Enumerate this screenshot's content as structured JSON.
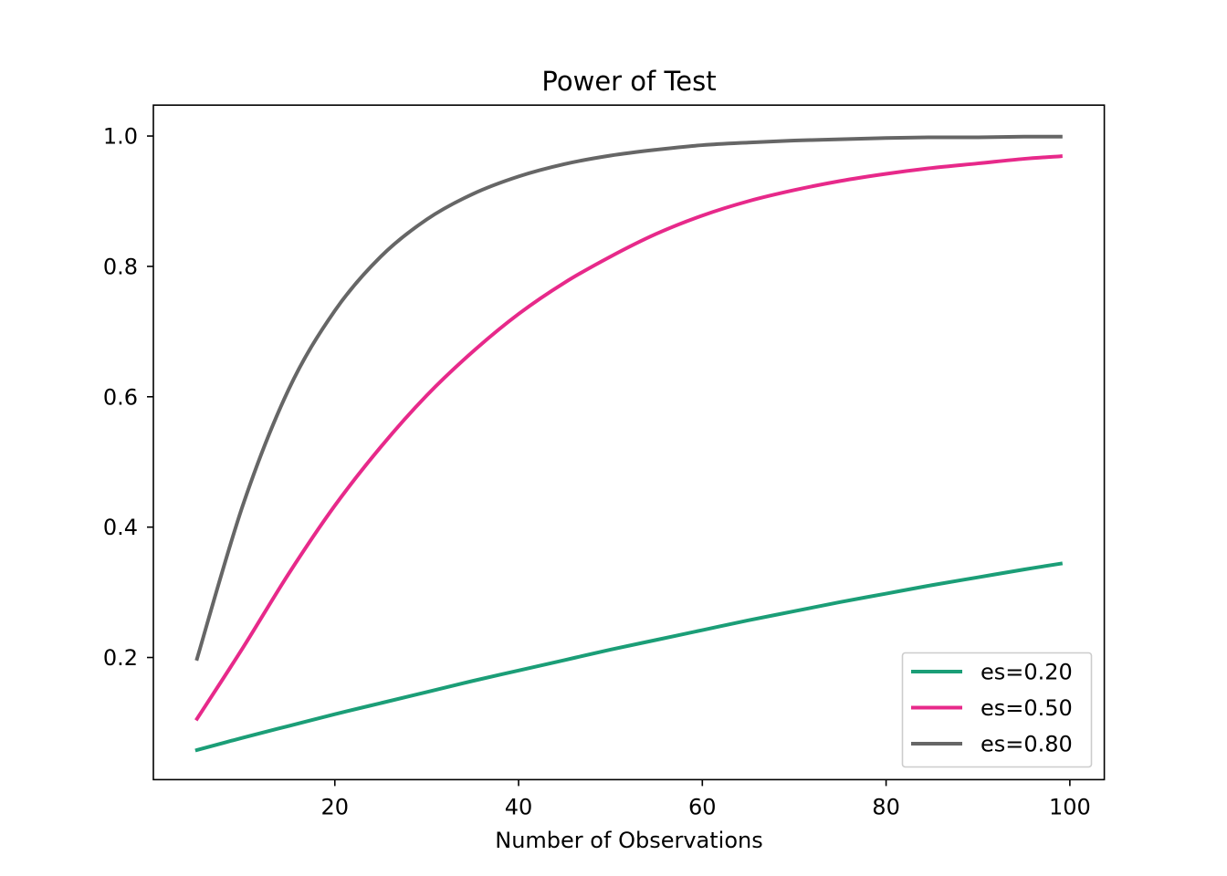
{
  "chart_data": {
    "type": "line",
    "title": "Power of Test",
    "xlabel": "Number of Observations",
    "ylabel": "",
    "xlim": [
      0.25,
      103.75
    ],
    "ylim": [
      0.0126,
      1.0474
    ],
    "xticks": [
      {
        "value": 20,
        "label": "20"
      },
      {
        "value": 40,
        "label": "40"
      },
      {
        "value": 60,
        "label": "60"
      },
      {
        "value": 80,
        "label": "80"
      },
      {
        "value": 100,
        "label": "100"
      }
    ],
    "yticks": [
      {
        "value": 0.2,
        "label": "0.2"
      },
      {
        "value": 0.4,
        "label": "0.4"
      },
      {
        "value": 0.6,
        "label": "0.6"
      },
      {
        "value": 0.8,
        "label": "0.8"
      },
      {
        "value": 1.0,
        "label": "1.0"
      }
    ],
    "grid": false,
    "legend_position": "lower-right",
    "x": [
      5,
      10,
      15,
      20,
      25,
      30,
      35,
      40,
      45,
      50,
      55,
      60,
      65,
      70,
      75,
      80,
      85,
      90,
      95,
      99
    ],
    "series": [
      {
        "name": "es=0.20",
        "color": "#1b9e77",
        "values": [
          0.058,
          0.077,
          0.095,
          0.113,
          0.13,
          0.147,
          0.164,
          0.18,
          0.196,
          0.212,
          0.227,
          0.242,
          0.257,
          0.271,
          0.285,
          0.298,
          0.311,
          0.323,
          0.335,
          0.344
        ]
      },
      {
        "name": "es=0.50",
        "color": "#e7298a",
        "values": [
          0.106,
          0.215,
          0.329,
          0.433,
          0.523,
          0.602,
          0.669,
          0.727,
          0.775,
          0.815,
          0.85,
          0.878,
          0.9,
          0.917,
          0.931,
          0.942,
          0.951,
          0.958,
          0.965,
          0.969
        ]
      },
      {
        "name": "es=0.80",
        "color": "#666666",
        "values": [
          0.198,
          0.434,
          0.612,
          0.732,
          0.815,
          0.872,
          0.911,
          0.938,
          0.957,
          0.97,
          0.979,
          0.986,
          0.99,
          0.993,
          0.995,
          0.997,
          0.998,
          0.998,
          0.999,
          0.999
        ]
      }
    ]
  }
}
